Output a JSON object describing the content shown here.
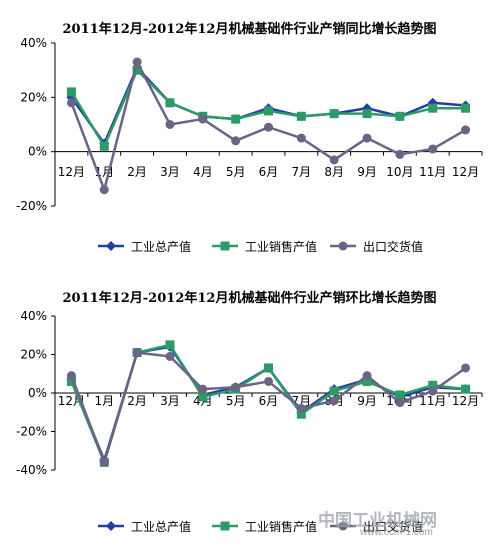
{
  "chart_data": [
    {
      "type": "line",
      "title": "2011年12月-2012年12月机械基础件行业产销同比增长趋势图",
      "categories": [
        "12月",
        "1月",
        "2月",
        "3月",
        "4月",
        "5月",
        "6月",
        "7月",
        "8月",
        "9月",
        "10月",
        "11月",
        "12月"
      ],
      "y_ticks": [
        "40%",
        "20%",
        "0%",
        "-20%"
      ],
      "ylim": [
        -20,
        40
      ],
      "legend_position": "bottom",
      "series": [
        {
          "name": "工业总产值",
          "color": "#1f3fa6",
          "marker": "diamond",
          "values": [
            20,
            3,
            31,
            18,
            13,
            12,
            16,
            13,
            14,
            16,
            13,
            18,
            17
          ]
        },
        {
          "name": "工业销售产值",
          "color": "#2e9a6a",
          "marker": "square",
          "values": [
            22,
            2,
            30,
            18,
            13,
            12,
            15,
            13,
            14,
            14,
            13,
            16,
            16
          ]
        },
        {
          "name": "出口交货值",
          "color": "#6b6487",
          "marker": "circle",
          "values": [
            18,
            -14,
            33,
            10,
            12,
            4,
            9,
            5,
            -3,
            5,
            -1,
            1,
            8
          ]
        }
      ]
    },
    {
      "type": "line",
      "title": "2011年12月-2012年12月机械基础件行业产销环比增长趋势图",
      "categories": [
        "12月",
        "1月",
        "2月",
        "3月",
        "4月",
        "5月",
        "6月",
        "7月",
        "8月",
        "9月",
        "10月",
        "11月",
        "12月"
      ],
      "y_ticks": [
        "40%",
        "20%",
        "0%",
        "-20%",
        "-40%"
      ],
      "ylim": [
        -40,
        40
      ],
      "legend_position": "bottom",
      "series": [
        {
          "name": "工业总产值",
          "color": "#1f3fa6",
          "marker": "diamond",
          "values": [
            7,
            -35,
            21,
            24,
            -1,
            3,
            13,
            -10,
            2,
            7,
            -2,
            3,
            2
          ]
        },
        {
          "name": "工业销售产值",
          "color": "#2e9a6a",
          "marker": "square",
          "values": [
            6,
            -36,
            21,
            25,
            -2,
            2,
            13,
            -11,
            1,
            6,
            -1,
            4,
            2
          ]
        },
        {
          "name": "出口交货值",
          "color": "#6b6487",
          "marker": "circle",
          "values": [
            9,
            -36,
            21,
            19,
            2,
            3,
            6,
            -8,
            -4,
            9,
            -5,
            1,
            13
          ]
        }
      ]
    }
  ],
  "watermark": {
    "site_name": "中国工业机械网",
    "url": "www.ccm-1.com"
  }
}
